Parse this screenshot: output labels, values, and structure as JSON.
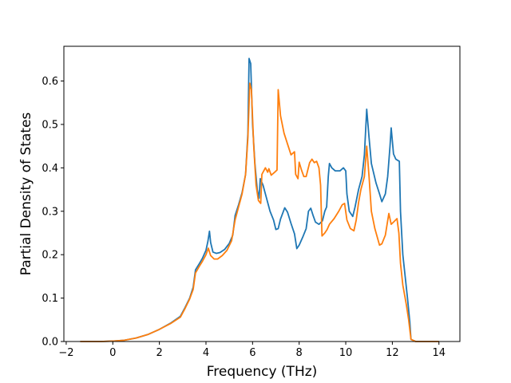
{
  "chart_data": {
    "type": "line",
    "title": "",
    "xlabel": "Frequency (THz)",
    "ylabel": "Partial Density of States",
    "xlim": [
      -2.1,
      14.9
    ],
    "ylim": [
      0.0,
      0.68
    ],
    "xticks": [
      -2,
      0,
      2,
      4,
      6,
      8,
      10,
      12,
      14
    ],
    "xtick_labels": [
      "−2",
      "0",
      "2",
      "4",
      "6",
      "8",
      "10",
      "12",
      "14"
    ],
    "yticks": [
      0.0,
      0.1,
      0.2,
      0.3,
      0.4,
      0.5,
      0.6
    ],
    "ytick_labels": [
      "0.0",
      "0.1",
      "0.2",
      "0.3",
      "0.4",
      "0.5",
      "0.6"
    ],
    "grid": false,
    "legend": "none",
    "series": [
      {
        "color": "#1f77b4",
        "points": [
          [
            -1.4,
            0.0
          ],
          [
            -0.5,
            0.0
          ],
          [
            0.0,
            0.001
          ],
          [
            0.5,
            0.003
          ],
          [
            1.0,
            0.008
          ],
          [
            1.5,
            0.016
          ],
          [
            2.0,
            0.028
          ],
          [
            2.5,
            0.043
          ],
          [
            2.9,
            0.058
          ],
          [
            3.1,
            0.078
          ],
          [
            3.3,
            0.1
          ],
          [
            3.45,
            0.125
          ],
          [
            3.55,
            0.165
          ],
          [
            3.7,
            0.178
          ],
          [
            3.85,
            0.192
          ],
          [
            4.0,
            0.21
          ],
          [
            4.08,
            0.23
          ],
          [
            4.15,
            0.254
          ],
          [
            4.2,
            0.228
          ],
          [
            4.3,
            0.206
          ],
          [
            4.45,
            0.203
          ],
          [
            4.6,
            0.205
          ],
          [
            4.8,
            0.212
          ],
          [
            5.0,
            0.226
          ],
          [
            5.15,
            0.245
          ],
          [
            5.25,
            0.29
          ],
          [
            5.4,
            0.315
          ],
          [
            5.55,
            0.343
          ],
          [
            5.7,
            0.385
          ],
          [
            5.8,
            0.48
          ],
          [
            5.85,
            0.652
          ],
          [
            5.92,
            0.64
          ],
          [
            6.0,
            0.5
          ],
          [
            6.1,
            0.41
          ],
          [
            6.2,
            0.35
          ],
          [
            6.28,
            0.33
          ],
          [
            6.33,
            0.375
          ],
          [
            6.45,
            0.36
          ],
          [
            6.6,
            0.33
          ],
          [
            6.75,
            0.3
          ],
          [
            6.9,
            0.28
          ],
          [
            7.0,
            0.258
          ],
          [
            7.1,
            0.26
          ],
          [
            7.2,
            0.282
          ],
          [
            7.38,
            0.308
          ],
          [
            7.5,
            0.298
          ],
          [
            7.65,
            0.272
          ],
          [
            7.8,
            0.248
          ],
          [
            7.9,
            0.214
          ],
          [
            8.0,
            0.222
          ],
          [
            8.15,
            0.24
          ],
          [
            8.3,
            0.26
          ],
          [
            8.4,
            0.3
          ],
          [
            8.5,
            0.307
          ],
          [
            8.6,
            0.29
          ],
          [
            8.7,
            0.275
          ],
          [
            8.85,
            0.27
          ],
          [
            9.0,
            0.278
          ],
          [
            9.1,
            0.3
          ],
          [
            9.18,
            0.31
          ],
          [
            9.25,
            0.38
          ],
          [
            9.3,
            0.41
          ],
          [
            9.4,
            0.4
          ],
          [
            9.55,
            0.393
          ],
          [
            9.75,
            0.393
          ],
          [
            9.9,
            0.4
          ],
          [
            10.0,
            0.393
          ],
          [
            10.05,
            0.34
          ],
          [
            10.15,
            0.3
          ],
          [
            10.3,
            0.288
          ],
          [
            10.4,
            0.31
          ],
          [
            10.55,
            0.35
          ],
          [
            10.7,
            0.38
          ],
          [
            10.8,
            0.43
          ],
          [
            10.9,
            0.535
          ],
          [
            11.0,
            0.47
          ],
          [
            11.1,
            0.41
          ],
          [
            11.3,
            0.365
          ],
          [
            11.45,
            0.34
          ],
          [
            11.55,
            0.322
          ],
          [
            11.7,
            0.34
          ],
          [
            11.8,
            0.38
          ],
          [
            11.9,
            0.45
          ],
          [
            11.95,
            0.492
          ],
          [
            12.05,
            0.432
          ],
          [
            12.15,
            0.42
          ],
          [
            12.3,
            0.415
          ],
          [
            12.35,
            0.3
          ],
          [
            12.45,
            0.2
          ],
          [
            12.55,
            0.15
          ],
          [
            12.65,
            0.1
          ],
          [
            12.75,
            0.045
          ],
          [
            12.8,
            0.005
          ],
          [
            13.0,
            0.0
          ],
          [
            14.0,
            0.0
          ]
        ]
      },
      {
        "color": "#ff7f0e",
        "points": [
          [
            -1.4,
            0.0
          ],
          [
            -0.5,
            0.0
          ],
          [
            0.0,
            0.001
          ],
          [
            0.5,
            0.003
          ],
          [
            1.0,
            0.008
          ],
          [
            1.5,
            0.016
          ],
          [
            2.0,
            0.028
          ],
          [
            2.5,
            0.042
          ],
          [
            2.9,
            0.056
          ],
          [
            3.1,
            0.076
          ],
          [
            3.3,
            0.098
          ],
          [
            3.45,
            0.12
          ],
          [
            3.55,
            0.158
          ],
          [
            3.7,
            0.172
          ],
          [
            3.85,
            0.185
          ],
          [
            4.0,
            0.2
          ],
          [
            4.1,
            0.215
          ],
          [
            4.2,
            0.198
          ],
          [
            4.35,
            0.19
          ],
          [
            4.5,
            0.19
          ],
          [
            4.7,
            0.198
          ],
          [
            4.9,
            0.21
          ],
          [
            5.1,
            0.232
          ],
          [
            5.25,
            0.28
          ],
          [
            5.4,
            0.31
          ],
          [
            5.55,
            0.34
          ],
          [
            5.7,
            0.385
          ],
          [
            5.8,
            0.47
          ],
          [
            5.88,
            0.595
          ],
          [
            5.95,
            0.58
          ],
          [
            6.05,
            0.45
          ],
          [
            6.15,
            0.36
          ],
          [
            6.25,
            0.325
          ],
          [
            6.35,
            0.318
          ],
          [
            6.4,
            0.385
          ],
          [
            6.55,
            0.4
          ],
          [
            6.65,
            0.39
          ],
          [
            6.7,
            0.398
          ],
          [
            6.8,
            0.383
          ],
          [
            6.95,
            0.39
          ],
          [
            7.05,
            0.395
          ],
          [
            7.1,
            0.58
          ],
          [
            7.2,
            0.52
          ],
          [
            7.35,
            0.48
          ],
          [
            7.5,
            0.455
          ],
          [
            7.65,
            0.43
          ],
          [
            7.8,
            0.437
          ],
          [
            7.85,
            0.385
          ],
          [
            7.95,
            0.375
          ],
          [
            8.0,
            0.413
          ],
          [
            8.1,
            0.395
          ],
          [
            8.2,
            0.38
          ],
          [
            8.3,
            0.38
          ],
          [
            8.45,
            0.412
          ],
          [
            8.55,
            0.42
          ],
          [
            8.65,
            0.412
          ],
          [
            8.75,
            0.415
          ],
          [
            8.85,
            0.4
          ],
          [
            8.92,
            0.36
          ],
          [
            8.98,
            0.243
          ],
          [
            9.1,
            0.25
          ],
          [
            9.2,
            0.258
          ],
          [
            9.3,
            0.27
          ],
          [
            9.5,
            0.283
          ],
          [
            9.7,
            0.3
          ],
          [
            9.85,
            0.315
          ],
          [
            9.95,
            0.318
          ],
          [
            10.05,
            0.28
          ],
          [
            10.2,
            0.26
          ],
          [
            10.35,
            0.255
          ],
          [
            10.45,
            0.28
          ],
          [
            10.55,
            0.32
          ],
          [
            10.65,
            0.35
          ],
          [
            10.8,
            0.38
          ],
          [
            10.9,
            0.45
          ],
          [
            11.0,
            0.38
          ],
          [
            11.1,
            0.3
          ],
          [
            11.25,
            0.26
          ],
          [
            11.45,
            0.222
          ],
          [
            11.55,
            0.225
          ],
          [
            11.7,
            0.245
          ],
          [
            11.85,
            0.295
          ],
          [
            11.95,
            0.27
          ],
          [
            12.05,
            0.275
          ],
          [
            12.2,
            0.283
          ],
          [
            12.28,
            0.25
          ],
          [
            12.35,
            0.18
          ],
          [
            12.45,
            0.13
          ],
          [
            12.6,
            0.085
          ],
          [
            12.7,
            0.05
          ],
          [
            12.8,
            0.005
          ],
          [
            13.0,
            0.0
          ],
          [
            14.0,
            0.0
          ]
        ]
      }
    ]
  }
}
